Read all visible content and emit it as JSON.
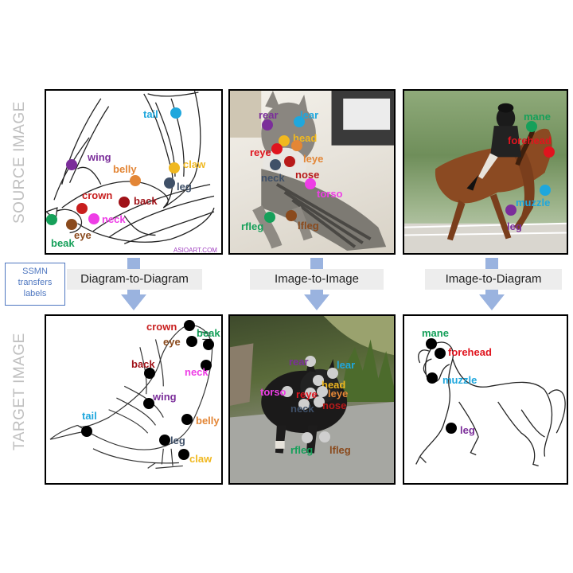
{
  "labels": {
    "source": "SOURCE IMAGE",
    "target": "TARGET IMAGE",
    "ssmn": [
      "SSMN",
      "transfers",
      "labels"
    ]
  },
  "transfers": [
    "Diagram-to-Diagram",
    "Image-to-Image",
    "Image-to-Diagram"
  ],
  "watermark": "ASIOART.COM",
  "colors": {
    "tail": "#1fa7dd",
    "wing": "#7b2e9a",
    "belly": "#e38636",
    "claw": "#f0b820",
    "leg": "#3f5068",
    "crown": "#c81e1e",
    "back": "#a01218",
    "neck": "#ee3ee6",
    "beak": "#16a05a",
    "eye": "#8a4a1d",
    "rear": "#7b2e9a",
    "lear": "#1fa7dd",
    "head": "#f0b820",
    "reye": "#e0141e",
    "leye": "#e38636",
    "nose": "#b81a1a",
    "torso": "#ee3ee6",
    "rfleg": "#16a05a",
    "lfleg": "#8a4a1d",
    "mane": "#16a05a",
    "forehead": "#e0141e",
    "muzzle": "#1fa7dd"
  },
  "source_bird": {
    "tail": "tail",
    "wing": "wing",
    "belly": "belly",
    "claw": "claw",
    "leg": "leg",
    "crown": "crown",
    "back": "back",
    "neck": "neck",
    "beak": "beak",
    "eye": "eye"
  },
  "source_cat": {
    "rear": "rear",
    "lear": "lear",
    "head": "head",
    "reye": "reye",
    "leye": "leye",
    "neck": "neck",
    "nose": "nose",
    "torso": "torso",
    "rfleg": "rfleg",
    "lfleg": "lfleg"
  },
  "source_horse": {
    "mane": "mane",
    "forehead": "forehead",
    "muzzle": "muzzle",
    "leg": "leg"
  },
  "target_bird": {
    "crown": "crown",
    "eye": "eye",
    "beak": "beak",
    "back": "back",
    "neck": "neck",
    "wing": "wing",
    "tail": "tail",
    "belly": "belly",
    "leg": "leg",
    "claw": "claw"
  },
  "target_cat": {
    "rear": "rear",
    "lear": "lear",
    "head": "head",
    "torso": "torso",
    "reye": "reye",
    "leye": "leye",
    "neck": "neck",
    "nose": "nose",
    "rfleg": "rfleg",
    "lfleg": "lfleg"
  },
  "target_horse": {
    "mane": "mane",
    "forehead": "forehead",
    "muzzle": "muzzle",
    "leg": "leg"
  }
}
